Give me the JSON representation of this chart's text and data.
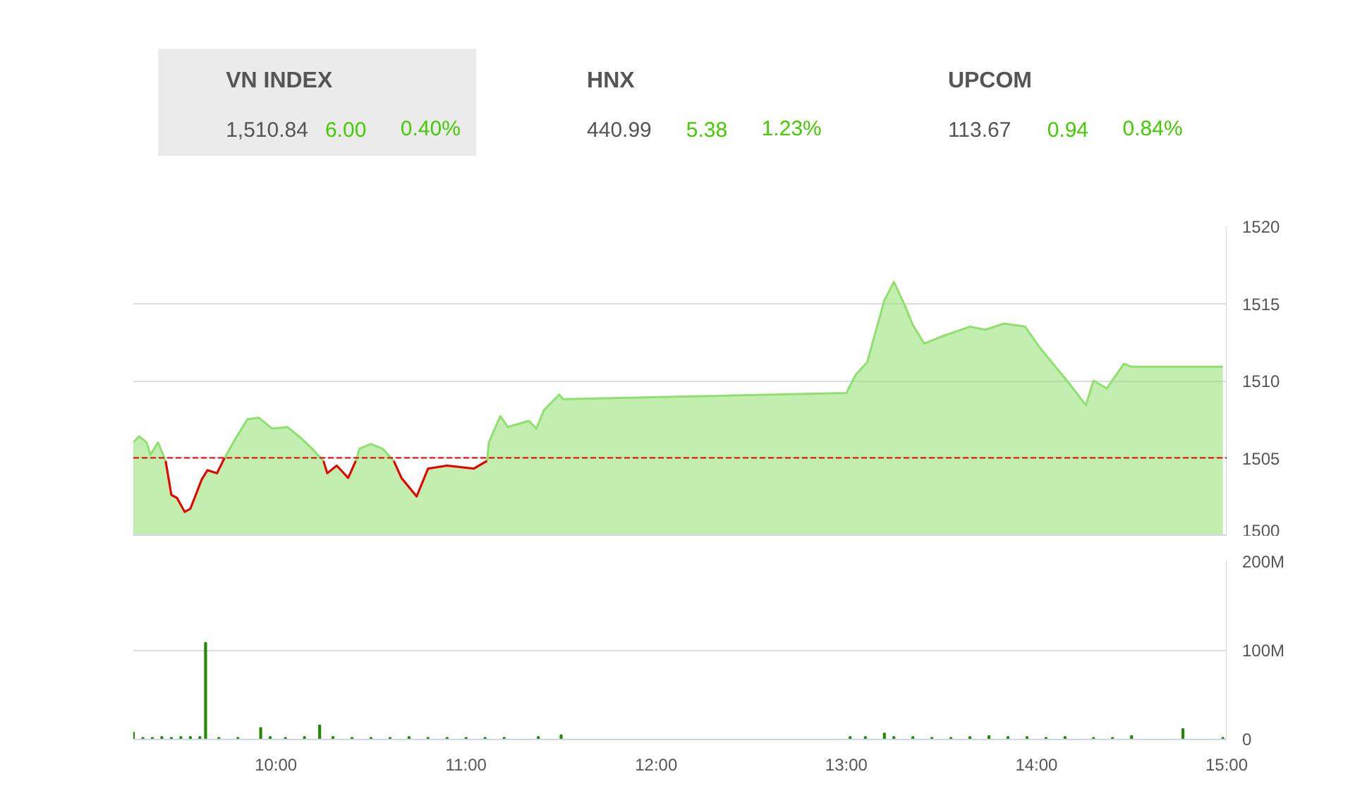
{
  "chart_data": [
    {
      "type": "other",
      "color": "#44cc00",
      "annotations": [
        "VN INDEX",
        "1,510.84",
        "6.00",
        "0.40%",
        "HNX",
        "440.99",
        "5.38",
        "1.23%",
        "UPCOM",
        "113.67",
        "0.94",
        "0.84%"
      ]
    },
    {
      "type": "area",
      "x": [
        9.25,
        9.28,
        9.32,
        9.34,
        9.38,
        9.42,
        9.45,
        9.48,
        9.52,
        9.55,
        9.61,
        9.64,
        9.69,
        9.73,
        9.79,
        9.85,
        9.91,
        9.98,
        10.06,
        10.13,
        10.19,
        10.25,
        10.27,
        10.32,
        10.38,
        10.42,
        10.44,
        10.5,
        10.56,
        10.62,
        10.66,
        10.74,
        10.8,
        10.9,
        11.04,
        11.11,
        11.12,
        11.18,
        11.22,
        11.33,
        11.37,
        11.41,
        11.49,
        11.51,
        13.0,
        13.05,
        13.11,
        13.15,
        13.2,
        13.25,
        13.31,
        13.35,
        13.41,
        13.51,
        13.65,
        13.73,
        13.83,
        13.94,
        14.02,
        14.1,
        14.18,
        14.26,
        14.3,
        14.37,
        14.46,
        14.5,
        14.98
      ],
      "series": [
        {
          "type": "area",
          "color": "#90e070",
          "values": [
            1506.0,
            1506.4,
            1506.0,
            1505.2,
            1506.0,
            1504.8,
            1502.6,
            1502.4,
            1501.5,
            1501.7,
            1503.6,
            1504.2,
            1504.0,
            1505.0,
            1506.3,
            1507.5,
            1507.6,
            1506.9,
            1507.0,
            1506.3,
            1505.6,
            1504.8,
            1504.0,
            1504.5,
            1503.7,
            1504.8,
            1505.6,
            1505.9,
            1505.6,
            1504.8,
            1503.7,
            1502.5,
            1504.3,
            1504.5,
            1504.3,
            1504.8,
            1506.0,
            1507.7,
            1507.0,
            1507.4,
            1506.9,
            1508.1,
            1509.1,
            1508.8,
            1509.2,
            1510.4,
            1511.2,
            1513.0,
            1515.2,
            1516.4,
            1514.8,
            1513.6,
            1512.4,
            1512.9,
            1513.5,
            1513.3,
            1513.7,
            1513.5,
            1512.1,
            1510.9,
            1509.7,
            1508.4,
            1510.0,
            1509.5,
            1511.1,
            1510.9,
            1510.9
          ]
        },
        {
          "type": "line",
          "color": "#ee0000",
          "x": [
            9.42,
            9.45,
            9.48,
            9.52,
            9.55,
            9.61,
            9.64,
            9.69,
            9.73,
            9.8,
            10.25,
            10.27,
            10.32,
            10.38,
            10.42,
            10.5,
            10.62,
            10.66,
            10.74,
            10.8,
            10.9,
            11.04,
            11.11
          ],
          "values": [
            1504.8,
            1502.6,
            1502.4,
            1501.5,
            1501.7,
            1503.6,
            1504.2,
            1504.0,
            1505.0,
            null,
            1504.8,
            1504.0,
            1504.5,
            1503.7,
            1504.8,
            null,
            1504.8,
            1503.7,
            1502.5,
            1504.3,
            1504.5,
            1504.3,
            1504.8
          ]
        }
      ],
      "xlim": [
        9.25,
        15.0
      ],
      "ylim": [
        1500,
        1520
      ],
      "yticks": [
        1500,
        1505,
        1510,
        1515,
        1520
      ],
      "grid": "y",
      "tick_labels": "y",
      "ref_lines": [
        {
          "axis": "y",
          "value": 1505,
          "color": "#ee0000",
          "line_style": "dashed"
        }
      ]
    },
    {
      "type": "bar",
      "color": "#228b00",
      "x": [
        9.25,
        9.3,
        9.35,
        9.4,
        9.45,
        9.5,
        9.55,
        9.6,
        9.63,
        9.7,
        9.8,
        9.92,
        9.97,
        10.05,
        10.15,
        10.23,
        10.3,
        10.4,
        10.5,
        10.6,
        10.7,
        10.8,
        10.9,
        11.0,
        11.1,
        11.2,
        11.38,
        11.5,
        13.02,
        13.1,
        13.2,
        13.25,
        13.35,
        13.45,
        13.55,
        13.65,
        13.75,
        13.85,
        13.95,
        14.05,
        14.15,
        14.3,
        14.4,
        14.5,
        14.77,
        14.98
      ],
      "values": [
        8000000,
        2000000,
        2000000,
        3000000,
        2000000,
        3000000,
        3000000,
        3000000,
        109000000,
        2000000,
        2000000,
        13000000,
        3000000,
        2000000,
        3000000,
        16000000,
        3000000,
        2000000,
        2000000,
        2000000,
        3000000,
        2000000,
        2000000,
        2000000,
        2000000,
        2000000,
        3000000,
        5000000,
        3000000,
        3000000,
        7000000,
        3000000,
        3000000,
        2000000,
        2000000,
        3000000,
        4000000,
        3000000,
        3000000,
        2000000,
        3000000,
        2000000,
        2000000,
        4000000,
        12000000,
        2000000
      ],
      "xlim": [
        9.25,
        15.0
      ],
      "xticks": [
        {
          "value": 10,
          "label": "10:00"
        },
        {
          "value": 11,
          "label": "11:00"
        },
        {
          "value": 12,
          "label": "12:00"
        },
        {
          "value": 13,
          "label": "13:00"
        },
        {
          "value": 14,
          "label": "14:00"
        },
        {
          "value": 15,
          "label": "15:00"
        }
      ],
      "ylim": [
        0,
        200000000
      ],
      "yticks": [
        {
          "value": 0,
          "label": "0"
        },
        {
          "value": 100000000,
          "label": "100M"
        },
        {
          "value": 200000000,
          "label": "200M"
        }
      ],
      "grid": "y"
    }
  ]
}
